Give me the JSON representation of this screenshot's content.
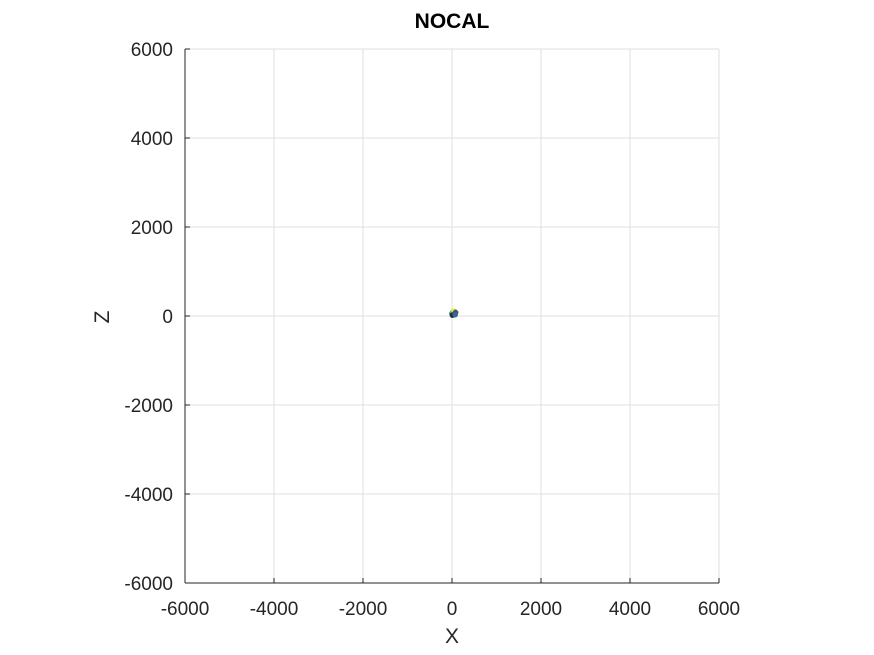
{
  "chart_data": {
    "type": "scatter",
    "title": "NOCAL",
    "xlabel": "X",
    "ylabel": "Z",
    "xlim": [
      -6000,
      6000
    ],
    "ylim": [
      -6000,
      6000
    ],
    "xticks": [
      -6000,
      -4000,
      -2000,
      0,
      2000,
      4000,
      6000
    ],
    "yticks": [
      -6000,
      -4000,
      -2000,
      0,
      2000,
      4000,
      6000
    ],
    "xtick_labels": [
      "-6000",
      "-4000",
      "-2000",
      "0",
      "2000",
      "4000",
      "6000"
    ],
    "ytick_labels": [
      "-6000",
      "-4000",
      "-2000",
      "0",
      "2000",
      "4000",
      "6000"
    ],
    "grid": true,
    "points": [
      {
        "x": 0,
        "y": 60,
        "color": "#2a788e"
      },
      {
        "x": 30,
        "y": 40,
        "color": "#440154"
      },
      {
        "x": 60,
        "y": 55,
        "color": "#21918c"
      },
      {
        "x": 20,
        "y": 90,
        "color": "#5ec962"
      },
      {
        "x": 50,
        "y": 110,
        "color": "#fde725"
      },
      {
        "x": 80,
        "y": 80,
        "color": "#3b528b"
      },
      {
        "x": 10,
        "y": 20,
        "color": "#1f2a4f"
      },
      {
        "x": 70,
        "y": 30,
        "color": "#31688e"
      }
    ]
  }
}
